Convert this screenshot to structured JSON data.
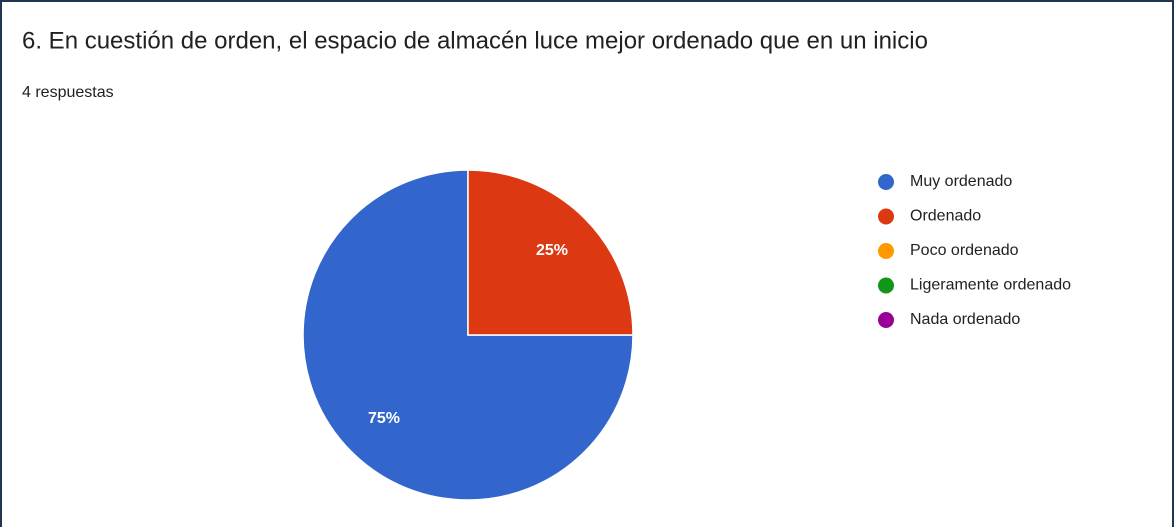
{
  "chart_data": {
    "type": "pie",
    "title": "6. En cuestión de orden, el espacio de almacén luce mejor ordenado que en un inicio",
    "subtitle": "4 respuestas",
    "categories": [
      "Muy ordenado",
      "Ordenado",
      "Poco ordenado",
      "Ligeramente ordenado",
      "Nada ordenado"
    ],
    "values": [
      75,
      25,
      0,
      0,
      0
    ],
    "value_labels": [
      "75%",
      "25%",
      null,
      null,
      null
    ],
    "colors": [
      "#3366cc",
      "#dc3912",
      "#ff9900",
      "#109618",
      "#990099"
    ],
    "legend": "right"
  }
}
